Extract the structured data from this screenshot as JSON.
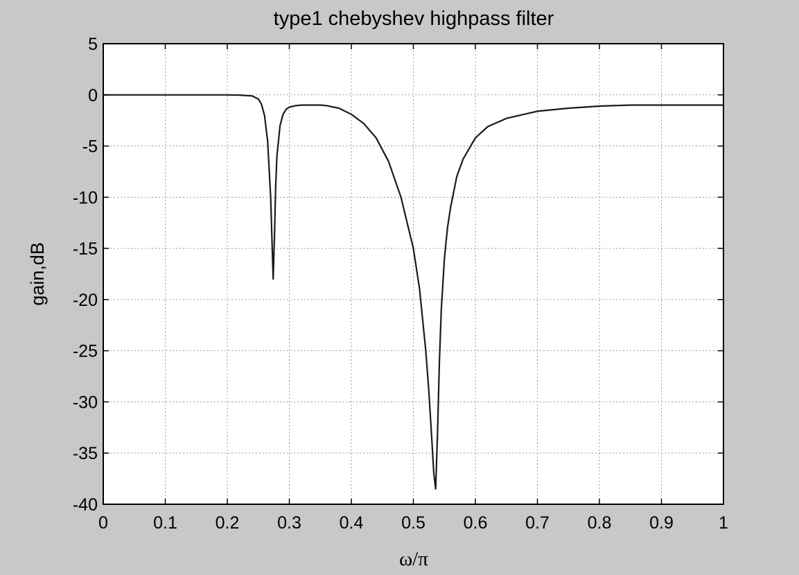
{
  "chart_data": {
    "type": "line",
    "title": "type1 chebyshev highpass filter",
    "xlabel": "ω/π",
    "ylabel": "gain,dB",
    "xlim": [
      0,
      1
    ],
    "ylim": [
      -40,
      5
    ],
    "xticks": [
      0,
      0.1,
      0.2,
      0.3,
      0.4,
      0.5,
      0.6,
      0.7,
      0.8,
      0.9,
      1
    ],
    "xtick_labels": [
      "0",
      "0.1",
      "0.2",
      "0.3",
      "0.4",
      "0.5",
      "0.6",
      "0.7",
      "0.8",
      "0.9",
      "1"
    ],
    "yticks": [
      5,
      0,
      -5,
      -10,
      -15,
      -20,
      -25,
      -30,
      -35,
      -40
    ],
    "ytick_labels": [
      "5",
      "0",
      "-5",
      "-10",
      "-15",
      "-20",
      "-25",
      "-30",
      "-35",
      "-40"
    ],
    "grid": true,
    "line_color": "#1a1a1a",
    "series": [
      {
        "x": [
          0,
          0.05,
          0.1,
          0.15,
          0.2,
          0.22,
          0.24,
          0.25,
          0.255,
          0.26,
          0.265,
          0.27,
          0.272,
          0.274,
          0.276,
          0.278,
          0.28,
          0.285,
          0.29,
          0.295,
          0.3,
          0.31,
          0.32,
          0.33,
          0.34,
          0.35,
          0.36,
          0.38,
          0.4,
          0.42,
          0.44,
          0.46,
          0.48,
          0.5,
          0.51,
          0.52,
          0.525,
          0.53,
          0.533,
          0.536,
          0.539,
          0.542,
          0.545,
          0.55,
          0.555,
          0.56,
          0.57,
          0.58,
          0.6,
          0.62,
          0.65,
          0.7,
          0.75,
          0.8,
          0.85,
          0.9,
          0.95,
          1.0
        ],
        "y": [
          0,
          0,
          0,
          0,
          0,
          -0.02,
          -0.1,
          -0.4,
          -0.9,
          -2.0,
          -4.5,
          -10,
          -14,
          -18,
          -14,
          -9,
          -6,
          -3,
          -1.9,
          -1.4,
          -1.2,
          -1.05,
          -1.0,
          -1.0,
          -1.0,
          -1.0,
          -1.05,
          -1.3,
          -1.9,
          -2.8,
          -4.2,
          -6.5,
          -10,
          -15,
          -19,
          -25,
          -29,
          -34,
          -37,
          -38.5,
          -33,
          -26,
          -21,
          -16,
          -13,
          -11,
          -8,
          -6.3,
          -4.2,
          -3.1,
          -2.3,
          -1.6,
          -1.3,
          -1.1,
          -1.0,
          -1.0,
          -1.0,
          -1.0
        ]
      }
    ]
  }
}
